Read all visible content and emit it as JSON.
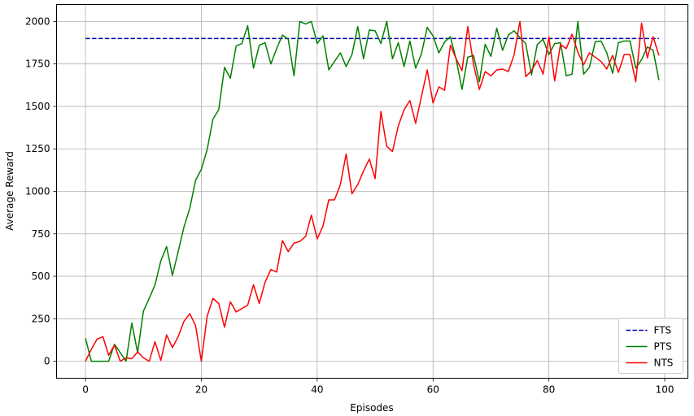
{
  "chart_data": {
    "type": "line",
    "title": "",
    "xlabel": "Episodes",
    "ylabel": "Average Reward",
    "xlim": [
      -5,
      104
    ],
    "ylim": [
      -100,
      2100
    ],
    "xticks": [
      0,
      20,
      40,
      60,
      80,
      100
    ],
    "yticks": [
      0,
      250,
      500,
      750,
      1000,
      1250,
      1500,
      1750,
      2000
    ],
    "grid": true,
    "legend_position": "bottom-right",
    "series": [
      {
        "name": "FTS",
        "color": "#0000aa",
        "style": "dashed",
        "x": [
          0,
          99
        ],
        "values": [
          1900,
          1900
        ]
      },
      {
        "name": "PTS",
        "color": "#008000",
        "style": "solid",
        "x": [
          0,
          1,
          2,
          3,
          4,
          5,
          6,
          7,
          8,
          9,
          10,
          11,
          12,
          13,
          14,
          15,
          16,
          17,
          18,
          19,
          20,
          21,
          22,
          23,
          24,
          25,
          26,
          27,
          28,
          29,
          30,
          31,
          32,
          33,
          34,
          35,
          36,
          37,
          38,
          39,
          40,
          41,
          42,
          43,
          44,
          45,
          46,
          47,
          48,
          49,
          50,
          51,
          52,
          53,
          54,
          55,
          56,
          57,
          58,
          59,
          60,
          61,
          62,
          63,
          64,
          65,
          66,
          67,
          68,
          69,
          70,
          71,
          72,
          73,
          74,
          75,
          76,
          77,
          78,
          79,
          80,
          81,
          82,
          83,
          84,
          85,
          86,
          87,
          88,
          89,
          90,
          91,
          92,
          93,
          94,
          95,
          96,
          97,
          98,
          99
        ],
        "values": [
          135,
          0,
          0,
          0,
          0,
          100,
          50,
          0,
          225,
          50,
          295,
          370,
          450,
          590,
          675,
          505,
          645,
          790,
          900,
          1065,
          1130,
          1245,
          1425,
          1480,
          1730,
          1665,
          1855,
          1870,
          1975,
          1725,
          1860,
          1875,
          1750,
          1840,
          1920,
          1895,
          1680,
          2000,
          1985,
          2000,
          1870,
          1915,
          1715,
          1765,
          1815,
          1735,
          1805,
          1970,
          1780,
          1950,
          1945,
          1870,
          2000,
          1780,
          1875,
          1735,
          1885,
          1725,
          1810,
          1965,
          1915,
          1815,
          1880,
          1910,
          1775,
          1600,
          1790,
          1800,
          1645,
          1865,
          1795,
          1960,
          1830,
          1920,
          1945,
          1905,
          1870,
          1685,
          1865,
          1895,
          1805,
          1870,
          1875,
          1680,
          1690,
          2000,
          1690,
          1730,
          1880,
          1885,
          1815,
          1695,
          1875,
          1885,
          1885,
          1725,
          1775,
          1850,
          1830,
          1655
        ]
      },
      {
        "name": "NTS",
        "color": "#ff0000",
        "style": "solid",
        "x": [
          0,
          1,
          2,
          3,
          4,
          5,
          6,
          7,
          8,
          9,
          10,
          11,
          12,
          13,
          14,
          15,
          16,
          17,
          18,
          19,
          20,
          21,
          22,
          23,
          24,
          25,
          26,
          27,
          28,
          29,
          30,
          31,
          32,
          33,
          34,
          35,
          36,
          37,
          38,
          39,
          40,
          41,
          42,
          43,
          44,
          45,
          46,
          47,
          48,
          49,
          50,
          51,
          52,
          53,
          54,
          55,
          56,
          57,
          58,
          59,
          60,
          61,
          62,
          63,
          64,
          65,
          66,
          67,
          68,
          69,
          70,
          71,
          72,
          73,
          74,
          75,
          76,
          77,
          78,
          79,
          80,
          81,
          82,
          83,
          84,
          85,
          86,
          87,
          88,
          89,
          90,
          91,
          92,
          93,
          94,
          95,
          96,
          97,
          98,
          99
        ],
        "values": [
          0,
          70,
          130,
          145,
          35,
          95,
          0,
          20,
          15,
          55,
          20,
          0,
          115,
          5,
          155,
          80,
          145,
          235,
          280,
          210,
          0,
          265,
          370,
          340,
          200,
          350,
          290,
          310,
          330,
          450,
          340,
          465,
          540,
          525,
          710,
          645,
          695,
          705,
          735,
          860,
          720,
          795,
          950,
          950,
          1040,
          1220,
          985,
          1040,
          1120,
          1190,
          1075,
          1470,
          1265,
          1235,
          1385,
          1480,
          1535,
          1400,
          1560,
          1715,
          1520,
          1615,
          1595,
          1860,
          1780,
          1710,
          1970,
          1745,
          1600,
          1705,
          1680,
          1715,
          1720,
          1705,
          1805,
          2000,
          1675,
          1710,
          1770,
          1690,
          1910,
          1650,
          1865,
          1840,
          1925,
          1820,
          1745,
          1815,
          1790,
          1765,
          1720,
          1800,
          1700,
          1805,
          1805,
          1645,
          1990,
          1785,
          1910,
          1800
        ]
      }
    ]
  }
}
